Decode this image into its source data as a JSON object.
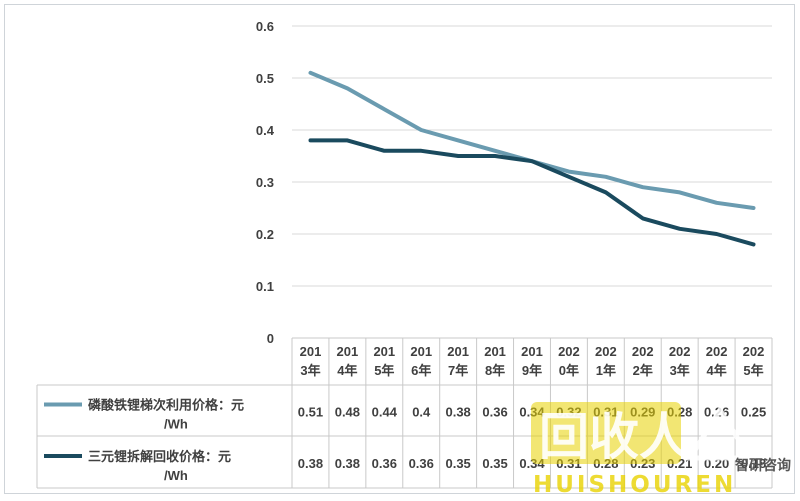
{
  "chart_data": {
    "type": "line",
    "categories": [
      "2013年",
      "2014年",
      "2015年",
      "2016年",
      "2017年",
      "2018年",
      "2019年",
      "2020年",
      "2021年",
      "2022年",
      "2023年",
      "2024年",
      "2025年"
    ],
    "category_lines": [
      [
        "201",
        "3年"
      ],
      [
        "201",
        "4年"
      ],
      [
        "201",
        "5年"
      ],
      [
        "201",
        "6年"
      ],
      [
        "201",
        "7年"
      ],
      [
        "201",
        "8年"
      ],
      [
        "201",
        "9年"
      ],
      [
        "202",
        "0年"
      ],
      [
        "202",
        "1年"
      ],
      [
        "202",
        "2年"
      ],
      [
        "202",
        "3年"
      ],
      [
        "202",
        "4年"
      ],
      [
        "202",
        "5年"
      ]
    ],
    "ylim": [
      0,
      0.6
    ],
    "yticks": [
      "0",
      "0.1",
      "0.2",
      "0.3",
      "0.4",
      "0.5",
      "0.6"
    ],
    "grid": true,
    "series": [
      {
        "name": "磷酸铁锂梯次利用价格：元/Wh",
        "name_lines": [
          "磷酸铁锂梯次利用价格：元",
          "/Wh"
        ],
        "color": "#6a9bb0",
        "values": [
          0.51,
          0.48,
          0.44,
          0.4,
          0.38,
          0.36,
          0.34,
          0.32,
          0.31,
          0.29,
          0.28,
          0.26,
          0.25
        ],
        "labels": [
          "0.51",
          "0.48",
          "0.44",
          "0.4",
          "0.38",
          "0.36",
          "0.34",
          "0.32",
          "0.31",
          "0.29",
          "0.28",
          "0.26",
          "0.25"
        ]
      },
      {
        "name": "三元锂拆解回收价格：元/Wh",
        "name_lines": [
          "三元锂拆解回收价格：元",
          "/Wh"
        ],
        "color": "#1a4a5e",
        "values": [
          0.38,
          0.38,
          0.36,
          0.36,
          0.35,
          0.35,
          0.34,
          0.31,
          0.28,
          0.23,
          0.21,
          0.2,
          0.18
        ],
        "labels": [
          "0.38",
          "0.38",
          "0.36",
          "0.36",
          "0.35",
          "0.35",
          "0.34",
          "0.31",
          "0.28",
          "0.23",
          "0.21",
          "0.20",
          "0.18"
        ]
      }
    ]
  },
  "watermark": {
    "logo_text": "回收人",
    "brand": "HUISHOUREN",
    "source": "智研咨询"
  }
}
